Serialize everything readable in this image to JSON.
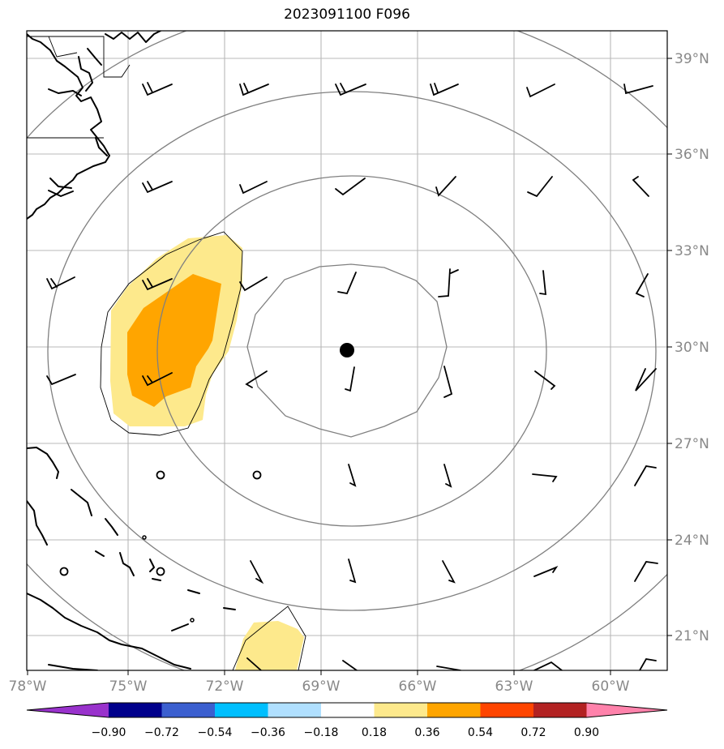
{
  "title": "2023091100 F096",
  "map": {
    "extent": {
      "lon_min": -78,
      "lon_max": -58.3,
      "lat_min": 19.9,
      "lat_max": 39.8
    },
    "lon_ticks": [
      "78°W",
      "75°W",
      "72°W",
      "69°W",
      "66°W",
      "63°W",
      "60°W"
    ],
    "lat_ticks": [
      "39°N",
      "36°N",
      "33°N",
      "30°N",
      "27°N",
      "24°N",
      "21°N"
    ],
    "center_marker": {
      "lon": -68.0,
      "lat": 29.9
    },
    "range_rings_deg": [
      3,
      6,
      9,
      12
    ],
    "shading": {
      "colors": {
        "0.18-0.36": "#fde98c",
        "0.36-0.54": "#ffa500"
      }
    }
  },
  "colorbar": {
    "labels": [
      "−0.90",
      "−0.72",
      "−0.54",
      "−0.36",
      "−0.18",
      "0.18",
      "0.36",
      "0.54",
      "0.72",
      "0.90"
    ],
    "colors": [
      "#9932cc",
      "#00008b",
      "#3b5fcf",
      "#00bfff",
      "#b0e0ff",
      "#ffffff",
      "#fde98c",
      "#ffa500",
      "#ff4500",
      "#b22222",
      "#ff82ab"
    ]
  }
}
